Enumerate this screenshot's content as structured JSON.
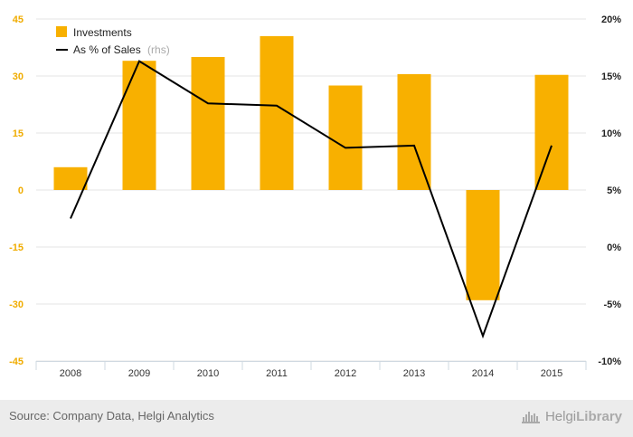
{
  "chart_data": {
    "type": "bar",
    "categories": [
      "2008",
      "2009",
      "2010",
      "2011",
      "2012",
      "2013",
      "2014",
      "2015"
    ],
    "series": [
      {
        "name": "Investments",
        "type": "bar",
        "axis": "left",
        "color": "#f8b000",
        "values": [
          6,
          34,
          35,
          40.5,
          27.5,
          30.5,
          -29,
          30.3
        ]
      },
      {
        "name": "As % of Sales",
        "name_suffix": "(rhs)",
        "type": "line",
        "axis": "right",
        "color": "#000000",
        "values": [
          2.5,
          16.3,
          12.6,
          12.4,
          8.7,
          8.9,
          -7.8,
          8.9
        ]
      }
    ],
    "y_left": {
      "ylim": [
        -45,
        45
      ],
      "ticks": [
        45,
        30,
        15,
        0,
        -15,
        -30,
        -45
      ],
      "tick_labels": [
        "45",
        "30",
        "15",
        "0",
        "-15",
        "-30",
        "-45"
      ]
    },
    "y_right": {
      "ylim": [
        -10,
        20
      ],
      "ticks": [
        20,
        15,
        10,
        5,
        0,
        -5,
        -10
      ],
      "tick_labels": [
        "20%",
        "15%",
        "10%",
        "5%",
        "0%",
        "-5%",
        "-10%"
      ]
    },
    "grid": true,
    "legend_position": "top-left"
  },
  "footer": {
    "source": "Source: Company Data, Helgi Analytics",
    "brand_part1": "Helgi",
    "brand_part2": "Library"
  },
  "icons": {
    "brand_icon": "helgi-library-logo-icon"
  }
}
